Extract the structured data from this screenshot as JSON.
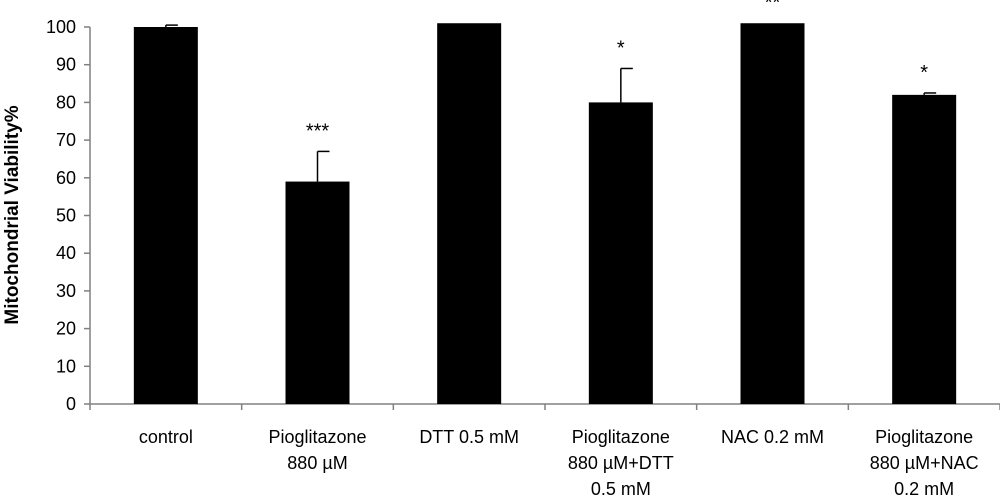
{
  "chart_data": {
    "type": "bar",
    "title": "",
    "xlabel": "",
    "ylabel": "Mitochondrial Viability%",
    "ylim": [
      0,
      100
    ],
    "yticks": [
      0,
      10,
      20,
      30,
      40,
      50,
      60,
      70,
      80,
      90,
      100
    ],
    "grid": false,
    "legend": "none",
    "bar_color": "#000000",
    "categories": [
      [
        "control"
      ],
      [
        "Pioglitazone",
        "880 µM"
      ],
      [
        "DTT 0.5 mM"
      ],
      [
        "Pioglitazone",
        "880 µM+DTT",
        "0.5 mM"
      ],
      [
        "NAC 0.2 mM"
      ],
      [
        "Pioglitazone",
        "880 µM+NAC",
        "0.2 mM"
      ]
    ],
    "values": [
      100,
      59,
      101,
      80,
      101,
      82
    ],
    "errors": [
      0.5,
      8,
      0,
      9,
      0,
      0.5
    ],
    "significance": [
      "",
      "***",
      "",
      "*",
      "**",
      "*"
    ]
  }
}
